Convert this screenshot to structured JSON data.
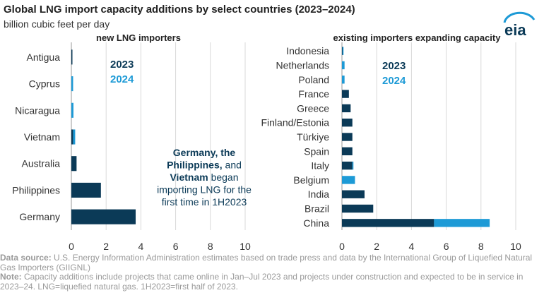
{
  "header": {
    "title": "Global LNG import capacity additions by select countries (2023–2024)",
    "subtitle": "billion cubic feet per day",
    "logo_text": "eia"
  },
  "colors": {
    "y2023": "#0b3a57",
    "y2024": "#1d9ad6",
    "grid": "#d9d9d9",
    "text": "#333333"
  },
  "chart_data": [
    {
      "type": "bar",
      "orientation": "horizontal",
      "stacked": true,
      "title": "new LNG importers",
      "categories": [
        "Antigua",
        "Cyprus",
        "Nicaragua",
        "Vietnam",
        "Australia",
        "Philippines",
        "Germany"
      ],
      "series": [
        {
          "name": "2023",
          "color": "#0b3a57",
          "values": [
            0.05,
            0,
            0,
            0.1,
            0.3,
            1.7,
            3.7
          ]
        },
        {
          "name": "2024",
          "color": "#1d9ad6",
          "values": [
            0,
            0.1,
            0.12,
            0.12,
            0,
            0,
            0
          ]
        }
      ],
      "xticks": [
        0,
        2,
        4,
        6,
        8,
        10
      ],
      "xlim": [
        0,
        10
      ],
      "legend": [
        "2023",
        "2024"
      ],
      "legend_position": "top-right",
      "grid": true,
      "annotation_parts": [
        {
          "text": "Germany, the",
          "bold": true
        },
        {
          "text": "Philippines,",
          "bold": true
        },
        {
          "text": " and",
          "bold": false
        },
        {
          "text": "Vietnam",
          "bold": true
        },
        {
          "text": " began",
          "bold": false
        },
        {
          "text": "importing LNG for the",
          "bold": false
        },
        {
          "text": "first time in 1H2023",
          "bold": false
        }
      ]
    },
    {
      "type": "bar",
      "orientation": "horizontal",
      "stacked": true,
      "title": "existing importers expanding capacity",
      "categories": [
        "Indonesia",
        "Netherlands",
        "Poland",
        "France",
        "Greece",
        "Finland/Estonia",
        "Türkiye",
        "Spain",
        "Italy",
        "Belgium",
        "India",
        "Brazil",
        "China"
      ],
      "series": [
        {
          "name": "2023",
          "color": "#0b3a57",
          "values": [
            0.03,
            0,
            0,
            0.4,
            0.5,
            0.6,
            0.6,
            0.6,
            0.6,
            0,
            1.3,
            1.8,
            5.3
          ]
        },
        {
          "name": "2024",
          "color": "#1d9ad6",
          "values": [
            0.05,
            0.15,
            0.15,
            0,
            0,
            0,
            0,
            0,
            0.05,
            0.75,
            0,
            0,
            3.2
          ]
        }
      ],
      "xticks": [
        0,
        2,
        4,
        6,
        8,
        10
      ],
      "xlim": [
        0,
        10
      ],
      "legend": [
        "2023",
        "2024"
      ],
      "legend_position": "top-left",
      "grid": true
    }
  ],
  "footnote": {
    "source_label": "Data source:",
    "source_text": " U.S. Energy Information Administration estimates based on trade press and data by the International Group of Liquefied Natural Gas Importers (GIIGNL)",
    "note_label": "Note:",
    "note_text": " Capacity additions include projects that came online in Jan–Jul 2023 and projects under construction and expected to be in service in 2023–24. LNG=liquefied natural gas. 1H2023=first half of 2023."
  }
}
